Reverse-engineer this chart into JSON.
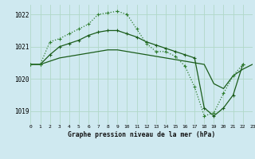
{
  "title": "Graphe pression niveau de la mer (hPa)",
  "bg_color": "#cfe9f0",
  "grid_color": "#b0d8c8",
  "line_color_dark": "#1a5c1a",
  "line_color_dotted": "#2e7d2e",
  "xlim": [
    0,
    23
  ],
  "ylim": [
    1018.6,
    1022.3
  ],
  "yticks": [
    1019,
    1020,
    1021,
    1022
  ],
  "xticks": [
    0,
    1,
    2,
    3,
    4,
    5,
    6,
    7,
    8,
    9,
    10,
    11,
    12,
    13,
    14,
    15,
    16,
    17,
    18,
    19,
    20,
    21,
    22,
    23
  ],
  "series_straight": {
    "x": [
      0,
      1,
      2,
      3,
      4,
      5,
      6,
      7,
      8,
      9,
      10,
      11,
      12,
      13,
      14,
      15,
      16,
      17,
      18,
      19,
      20,
      21,
      22,
      23
    ],
    "y": [
      1020.45,
      1020.45,
      1020.55,
      1020.65,
      1020.7,
      1020.75,
      1020.8,
      1020.85,
      1020.9,
      1020.9,
      1020.85,
      1020.8,
      1020.75,
      1020.7,
      1020.65,
      1020.6,
      1020.55,
      1020.5,
      1020.45,
      1019.85,
      1019.7,
      1020.1,
      1020.3,
      1020.45
    ]
  },
  "series_solid_markers": {
    "x": [
      0,
      1,
      2,
      3,
      4,
      5,
      6,
      7,
      8,
      9,
      10,
      11,
      12,
      13,
      14,
      15,
      16,
      17,
      18,
      19,
      20,
      21,
      22
    ],
    "y": [
      1020.45,
      1020.45,
      1020.75,
      1021.0,
      1021.1,
      1021.2,
      1021.35,
      1021.45,
      1021.5,
      1021.5,
      1021.4,
      1021.3,
      1021.15,
      1021.05,
      1020.95,
      1020.85,
      1020.75,
      1020.65,
      1019.1,
      1018.85,
      1019.1,
      1019.5,
      1020.45
    ]
  },
  "series_dotted_markers": {
    "x": [
      0,
      1,
      2,
      3,
      4,
      5,
      6,
      7,
      8,
      9,
      10,
      11,
      12,
      13,
      14,
      15,
      16,
      17,
      18,
      19,
      20,
      21,
      22
    ],
    "y": [
      1020.45,
      1020.45,
      1021.15,
      1021.25,
      1021.4,
      1021.55,
      1021.7,
      1022.0,
      1022.05,
      1022.1,
      1022.0,
      1021.55,
      1021.1,
      1020.85,
      1020.85,
      1020.7,
      1020.4,
      1019.75,
      1018.85,
      1018.95,
      1019.55,
      1020.1,
      1020.45
    ]
  }
}
